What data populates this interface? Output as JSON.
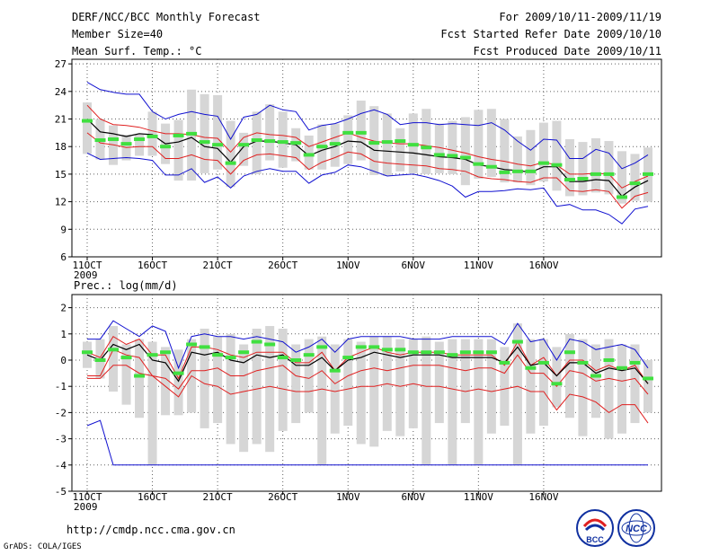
{
  "header": {
    "title": "DERF/NCC/BCC Monthly Forecast",
    "member": "Member Size=40",
    "variable": "Mean Surf. Temp.: °C",
    "period": "For 2009/10/11-2009/11/19",
    "started": "Fcst Started Refer Date 2009/10/10",
    "produced": "Fcst Produced Date 2009/10/11"
  },
  "footer": {
    "url": "http://cmdp.ncc.cma.gov.cn",
    "grads": "GrADS: COLA/IGES",
    "logo_left": "BCC",
    "logo_right": "NCC"
  },
  "colors": {
    "box": "#d6d6d6",
    "max_min": "#1010d0",
    "percentile": "#e02020",
    "mean": "#000000",
    "obs": "#40e040",
    "grid": "#606060"
  },
  "chart_data": [
    {
      "type": "box",
      "title": "Mean Surf. Temp.: °C",
      "x_labels": [
        "11OCT",
        "16OCT",
        "21OCT",
        "26OCT",
        "1NOV",
        "6NOV",
        "11NOV",
        "16NOV"
      ],
      "year_label": "2009",
      "ylim": [
        6,
        27.5
      ],
      "yticks": [
        6,
        9,
        12,
        15,
        18,
        21,
        24,
        27
      ],
      "series": [
        {
          "name": "max",
          "values": [
            25,
            24.2,
            23.9,
            23.7,
            23.7,
            21.8,
            21.0,
            21.5,
            21.8,
            21.5,
            21.3,
            18.8,
            21.2,
            21.5,
            22.5,
            22.0,
            21.8,
            19.8,
            20.3,
            20.5,
            21.0,
            21.6,
            22.0,
            21.5,
            20.4,
            20.6,
            20.6,
            20.4,
            20.5,
            20.4,
            20.3,
            20.6,
            19.8,
            18.6,
            17.6,
            18.8,
            18.7,
            16.7,
            16.7,
            17.7,
            17.3,
            15.6,
            16.2,
            17.1
          ]
        },
        {
          "name": "p90",
          "values": [
            22.5,
            21.0,
            20.4,
            20.3,
            20.1,
            19.7,
            19.4,
            19.4,
            19.3,
            19.0,
            18.9,
            17.4,
            19.0,
            19.5,
            19.3,
            19.2,
            19.0,
            18.0,
            18.5,
            19.0,
            19.5,
            19.0,
            18.6,
            18.4,
            18.3,
            18.3,
            18.1,
            17.9,
            17.6,
            17.3,
            16.9,
            16.6,
            16.4,
            16.1,
            15.9,
            16.3,
            16.0,
            15.0,
            15.0,
            15.1,
            15.0,
            13.5,
            14.2,
            14.8
          ]
        },
        {
          "name": "mean",
          "values": [
            21.0,
            19.6,
            19.4,
            19.1,
            19.4,
            19.3,
            18.3,
            18.5,
            19.0,
            18.0,
            17.8,
            16.3,
            18.0,
            18.6,
            18.6,
            18.4,
            18.2,
            17.0,
            17.6,
            18.0,
            18.6,
            18.5,
            17.6,
            17.5,
            17.4,
            17.3,
            17.1,
            16.9,
            16.8,
            16.6,
            16.0,
            15.8,
            15.5,
            15.4,
            15.2,
            15.8,
            15.8,
            14.2,
            14.2,
            14.4,
            14.3,
            12.6,
            13.6,
            14.3
          ]
        },
        {
          "name": "p10",
          "values": [
            19.5,
            18.4,
            18.2,
            17.9,
            18.0,
            18.0,
            16.7,
            16.7,
            17.1,
            16.6,
            16.5,
            15.0,
            16.5,
            17.1,
            17.2,
            17.0,
            16.8,
            15.5,
            16.3,
            16.8,
            17.4,
            17.2,
            16.4,
            16.2,
            16.1,
            16.0,
            15.9,
            15.6,
            15.5,
            15.3,
            14.7,
            14.5,
            14.4,
            14.2,
            14.1,
            14.6,
            14.6,
            13.2,
            13.1,
            13.3,
            13.1,
            11.3,
            12.6,
            13.0
          ]
        },
        {
          "name": "min",
          "values": [
            17.3,
            16.6,
            16.7,
            16.8,
            16.7,
            16.5,
            14.9,
            14.9,
            15.6,
            14.1,
            14.7,
            13.5,
            14.8,
            15.3,
            15.6,
            15.3,
            15.3,
            14.0,
            14.9,
            15.2,
            16.0,
            15.8,
            15.3,
            14.8,
            14.9,
            15.0,
            14.7,
            14.3,
            13.7,
            12.5,
            13.1,
            13.1,
            13.2,
            13.4,
            13.3,
            13.5,
            11.5,
            11.7,
            11.1,
            11.1,
            10.6,
            9.6,
            11.2,
            11.5
          ]
        },
        {
          "name": "box_top",
          "values": [
            22.8,
            21.0,
            20.3,
            19.3,
            19.3,
            21.8,
            20.5,
            20.9,
            24.2,
            23.7,
            23.6,
            20.8,
            19.5,
            21.8,
            22.6,
            21.8,
            20.0,
            19.2,
            20.4,
            20.5,
            21.4,
            23.0,
            22.4,
            21.6,
            20.0,
            21.6,
            22.1,
            20.5,
            20.8,
            21.2,
            22.0,
            22.1,
            21.0,
            19.1,
            19.8,
            20.6,
            20.8,
            18.8,
            18.5,
            18.9,
            18.6,
            17.5,
            17.2,
            17.9
          ]
        },
        {
          "name": "box_bottom",
          "values": [
            17.2,
            16.6,
            16.0,
            16.5,
            17.0,
            17.0,
            16.1,
            14.3,
            14.3,
            15.1,
            15.5,
            13.6,
            15.9,
            15.0,
            16.5,
            15.7,
            16.4,
            15.5,
            15.5,
            15.8,
            16.1,
            16.5,
            14.9,
            14.8,
            15.3,
            15.1,
            15.0,
            15.1,
            15.0,
            13.8,
            14.5,
            14.7,
            14.1,
            14.1,
            13.8,
            14.2,
            13.2,
            12.6,
            12.7,
            13.0,
            12.8,
            11.8,
            12.1,
            12.0
          ]
        },
        {
          "name": "obs",
          "values": [
            20.8,
            18.7,
            18.8,
            18.3,
            18.8,
            19.1,
            18.0,
            19.2,
            19.4,
            18.5,
            18.2,
            16.2,
            18.2,
            18.7,
            18.6,
            18.5,
            18.4,
            17.1,
            18.0,
            18.3,
            19.5,
            19.5,
            18.4,
            18.5,
            18.6,
            18.2,
            17.9,
            17.1,
            17.0,
            16.8,
            16.1,
            15.8,
            15.2,
            15.3,
            15.3,
            16.2,
            16.0,
            14.4,
            14.5,
            15.0,
            15.0,
            12.5,
            14.0,
            15.0
          ]
        }
      ]
    },
    {
      "type": "box",
      "title": "Prec.: log(mm/d)",
      "x_labels": [
        "11OCT",
        "16OCT",
        "21OCT",
        "26OCT",
        "1NOV",
        "6NOV",
        "11NOV",
        "16NOV"
      ],
      "year_label": "2009",
      "ylim": [
        -5,
        2.5
      ],
      "yticks": [
        -5,
        -4,
        -3,
        -2,
        -1,
        0,
        1,
        2
      ],
      "series": [
        {
          "name": "max",
          "values": [
            0.8,
            0.8,
            1.5,
            1.2,
            0.9,
            1.3,
            1.1,
            -0.3,
            0.9,
            1.0,
            0.9,
            0.9,
            0.8,
            0.9,
            0.8,
            0.7,
            0.3,
            0.5,
            0.8,
            0.3,
            0.8,
            0.9,
            0.9,
            0.9,
            0.9,
            0.8,
            0.8,
            0.8,
            0.9,
            0.9,
            0.9,
            0.9,
            0.6,
            1.4,
            0.7,
            0.8,
            0.0,
            0.8,
            0.7,
            0.4,
            0.5,
            0.6,
            0.4,
            -0.3
          ]
        },
        {
          "name": "p90",
          "values": [
            0.3,
            0.1,
            0.9,
            0.6,
            0.8,
            0.2,
            0.2,
            -0.7,
            0.5,
            0.5,
            0.4,
            0.2,
            0.1,
            0.3,
            0.3,
            0.3,
            -0.1,
            -0.1,
            0.3,
            -0.4,
            0.1,
            0.3,
            0.5,
            0.3,
            0.2,
            0.3,
            0.3,
            0.3,
            0.2,
            0.2,
            0.2,
            0.2,
            -0.2,
            0.7,
            -0.2,
            0.1,
            -0.6,
            0.0,
            0.0,
            -0.4,
            -0.2,
            -0.4,
            -0.2,
            -0.9
          ]
        },
        {
          "name": "mean",
          "values": [
            0.2,
            0.0,
            0.6,
            0.4,
            0.6,
            0.0,
            -0.1,
            -0.8,
            0.3,
            0.2,
            0.3,
            0.0,
            -0.1,
            0.2,
            0.1,
            0.2,
            -0.2,
            -0.2,
            0.1,
            -0.4,
            0.0,
            0.1,
            0.3,
            0.2,
            0.1,
            0.2,
            0.2,
            0.2,
            0.1,
            0.1,
            0.1,
            0.1,
            -0.1,
            0.5,
            -0.2,
            -0.1,
            -0.6,
            -0.1,
            -0.1,
            -0.5,
            -0.3,
            -0.4,
            -0.3,
            -0.9
          ]
        },
        {
          "name": "p10",
          "values": [
            -0.6,
            -0.6,
            0.4,
            0.2,
            0.1,
            -0.6,
            -0.7,
            -1.1,
            -0.4,
            -0.4,
            -0.3,
            -0.6,
            -0.6,
            -0.4,
            -0.3,
            -0.2,
            -0.6,
            -0.7,
            -0.4,
            -0.9,
            -0.6,
            -0.4,
            -0.3,
            -0.4,
            -0.3,
            -0.2,
            -0.2,
            -0.2,
            -0.3,
            -0.4,
            -0.3,
            -0.3,
            -0.5,
            0.2,
            -0.5,
            -0.5,
            -1.0,
            -0.4,
            -0.5,
            -0.8,
            -0.7,
            -0.8,
            -0.7,
            -1.3
          ]
        },
        {
          "name": "min",
          "values": [
            -2.5,
            -2.3,
            -4.0,
            -4.0,
            -4.0,
            -4.0,
            -4.0,
            -4.0,
            -4.0,
            -4.0,
            -4.0,
            -4.0,
            -4.0,
            -4.0,
            -4.0,
            -4.0,
            -4.0,
            -4.0,
            -4.0,
            -4.0,
            -4.0,
            -4.0,
            -4.0,
            -4.0,
            -4.0,
            -4.0,
            -4.0,
            -4.0,
            -4.0,
            -4.0,
            -4.0,
            -4.0,
            -4.0,
            -4.0,
            -4.0,
            -4.0,
            -4.0,
            -4.0,
            -4.0,
            -4.0,
            -4.0,
            -4.0,
            -4.0,
            -4.0
          ]
        },
        {
          "name": "p10_lower",
          "values": [
            -0.7,
            -0.7,
            -0.2,
            -0.2,
            -0.5,
            -0.6,
            -1.0,
            -1.4,
            -0.6,
            -0.9,
            -1.0,
            -1.3,
            -1.2,
            -1.1,
            -1.0,
            -1.1,
            -1.2,
            -1.2,
            -1.1,
            -1.2,
            -1.1,
            -1.0,
            -1.0,
            -0.9,
            -1.0,
            -0.9,
            -1.0,
            -1.0,
            -1.1,
            -1.2,
            -1.1,
            -1.2,
            -1.1,
            -1.0,
            -1.2,
            -1.2,
            -1.9,
            -1.3,
            -1.4,
            -1.6,
            -2.0,
            -1.7,
            -1.7,
            -2.4
          ]
        },
        {
          "name": "box_top",
          "values": [
            0.7,
            0.8,
            1.3,
            0.6,
            0.8,
            0.7,
            0.5,
            0.4,
            0.8,
            1.2,
            0.9,
            1.0,
            0.6,
            1.2,
            1.3,
            1.2,
            0.6,
            0.8,
            0.9,
            0.6,
            0.8,
            0.7,
            0.9,
            0.9,
            0.8,
            0.8,
            0.9,
            0.7,
            0.8,
            0.8,
            0.8,
            0.8,
            0.5,
            1.4,
            0.8,
            0.8,
            0.5,
            1.0,
            0.8,
            0.6,
            0.8,
            0.6,
            0.6,
            0.0
          ]
        },
        {
          "name": "box_bottom",
          "values": [
            -0.3,
            -0.7,
            -1.2,
            -1.7,
            -2.2,
            -4.0,
            -2.1,
            -2.1,
            -2.0,
            -2.6,
            -2.4,
            -3.2,
            -3.5,
            -3.2,
            -3.5,
            -2.7,
            -2.4,
            -2.0,
            -4.0,
            -2.8,
            -2.5,
            -3.2,
            -3.3,
            -2.7,
            -2.9,
            -2.6,
            -4.0,
            -2.4,
            -4.0,
            -2.4,
            -4.0,
            -2.8,
            -2.5,
            -4.0,
            -2.8,
            -2.5,
            -1.8,
            -2.2,
            -2.9,
            -2.2,
            -3.0,
            -2.8,
            -2.4,
            -2.0
          ]
        },
        {
          "name": "obs",
          "values": [
            0.3,
            0.0,
            0.4,
            0.1,
            -0.6,
            0.2,
            0.3,
            -0.5,
            0.6,
            0.5,
            0.2,
            0.1,
            0.3,
            0.7,
            0.6,
            0.1,
            0.0,
            0.2,
            0.5,
            -0.4,
            0.1,
            0.5,
            0.5,
            0.4,
            0.4,
            0.3,
            0.3,
            0.3,
            0.2,
            0.3,
            0.3,
            0.3,
            -0.1,
            0.7,
            -0.3,
            -0.1,
            -0.9,
            0.3,
            -0.1,
            -0.6,
            0.0,
            -0.3,
            -0.1,
            -0.7
          ]
        }
      ]
    }
  ]
}
